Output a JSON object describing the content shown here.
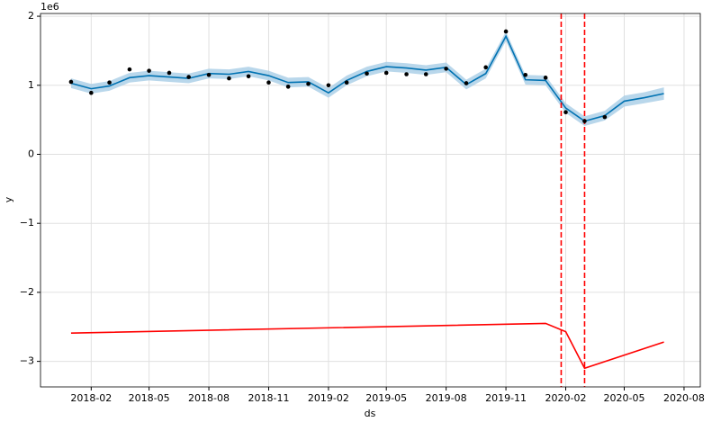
{
  "chart_data": {
    "type": "forecast",
    "x_label": "ds",
    "y_label": "y",
    "y_offset_label": "1e6",
    "xlim": [
      "2017-11-15",
      "2020-08-26"
    ],
    "xticks": [
      "2018-02",
      "2018-05",
      "2018-08",
      "2018-11",
      "2019-02",
      "2019-05",
      "2019-08",
      "2019-11",
      "2020-02",
      "2020-05",
      "2020-08"
    ],
    "ylim": [
      -3.37,
      2.04
    ],
    "yticks": [
      {
        "value": -3,
        "label": "−3"
      },
      {
        "value": -2,
        "label": "−2"
      },
      {
        "value": -1,
        "label": "−1"
      },
      0,
      1,
      2
    ],
    "grid": true,
    "actual": {
      "color": "#000000",
      "x": [
        "2018-01",
        "2018-02",
        "2018-03",
        "2018-04",
        "2018-05",
        "2018-06",
        "2018-07",
        "2018-08",
        "2018-09",
        "2018-10",
        "2018-11",
        "2018-12",
        "2019-01",
        "2019-02",
        "2019-03",
        "2019-04",
        "2019-05",
        "2019-06",
        "2019-07",
        "2019-08",
        "2019-09",
        "2019-10",
        "2019-11",
        "2019-12",
        "2020-01",
        "2020-02",
        "2020-03",
        "2020-04"
      ],
      "values": [
        1.05,
        0.89,
        1.04,
        1.23,
        1.21,
        1.18,
        1.12,
        1.15,
        1.1,
        1.13,
        1.04,
        0.98,
        1.02,
        1.0,
        1.04,
        1.17,
        1.18,
        1.16,
        1.16,
        1.24,
        1.03,
        1.26,
        1.78,
        1.15,
        1.11,
        0.61,
        0.48,
        0.54
      ]
    },
    "forecast": {
      "color": "#0072B2",
      "band_color": "#a8cde6",
      "x": [
        "2018-01",
        "2018-02",
        "2018-03",
        "2018-04",
        "2018-05",
        "2018-06",
        "2018-07",
        "2018-08",
        "2018-09",
        "2018-10",
        "2018-11",
        "2018-12",
        "2019-01",
        "2019-02",
        "2019-03",
        "2019-04",
        "2019-05",
        "2019-06",
        "2019-07",
        "2019-08",
        "2019-09",
        "2019-10",
        "2019-11",
        "2019-12",
        "2020-01",
        "2020-02",
        "2020-03",
        "2020-04",
        "2020-05",
        "2020-06",
        "2020-07"
      ],
      "values": [
        1.03,
        0.95,
        0.99,
        1.11,
        1.14,
        1.12,
        1.1,
        1.17,
        1.16,
        1.2,
        1.14,
        1.04,
        1.05,
        0.89,
        1.07,
        1.2,
        1.27,
        1.25,
        1.22,
        1.26,
        1.01,
        1.17,
        1.71,
        1.08,
        1.07,
        0.67,
        0.48,
        0.56,
        0.77,
        0.82,
        0.88
      ],
      "upper": [
        1.1,
        1.02,
        1.06,
        1.18,
        1.21,
        1.19,
        1.17,
        1.24,
        1.23,
        1.27,
        1.21,
        1.11,
        1.12,
        0.96,
        1.14,
        1.27,
        1.34,
        1.32,
        1.29,
        1.33,
        1.08,
        1.24,
        1.78,
        1.15,
        1.14,
        0.74,
        0.55,
        0.63,
        0.85,
        0.9,
        0.97
      ],
      "lower": [
        0.96,
        0.88,
        0.92,
        1.04,
        1.07,
        1.05,
        1.03,
        1.1,
        1.09,
        1.13,
        1.07,
        0.97,
        0.98,
        0.82,
        1.0,
        1.13,
        1.2,
        1.18,
        1.15,
        1.19,
        0.94,
        1.1,
        1.64,
        1.01,
        1.0,
        0.6,
        0.41,
        0.49,
        0.69,
        0.74,
        0.79
      ]
    },
    "trend": {
      "color": "#ff0000",
      "x": [
        "2018-01",
        "2020-01",
        "2020-02",
        "2020-03",
        "2020-07"
      ],
      "values": [
        -2.59,
        -2.45,
        -2.57,
        -3.1,
        -2.72
      ]
    },
    "changepoints": {
      "color": "#ff0000",
      "x": [
        "2020-01-25",
        "2020-03-01"
      ]
    }
  }
}
